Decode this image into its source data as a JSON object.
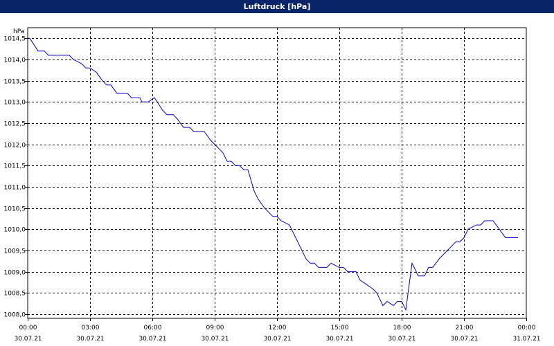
{
  "window": {
    "title": "Luftdruck [hPa]"
  },
  "chart_data": {
    "type": "line",
    "title": "Luftdruck [hPa]",
    "ylabel": "hPa",
    "xlabel": "",
    "grid": true,
    "ylim": [
      1007.9,
      1014.75
    ],
    "xlim": [
      0,
      24
    ],
    "y_ticks": [
      "1008,0",
      "1008,5",
      "1009,0",
      "1009,5",
      "1010,0",
      "1010,5",
      "1011,0",
      "1011,5",
      "1012,0",
      "1012,5",
      "1013,0",
      "1013,5",
      "1014,0",
      "1014,5"
    ],
    "y_tick_values": [
      1008.0,
      1008.5,
      1009.0,
      1009.5,
      1010.0,
      1010.5,
      1011.0,
      1011.5,
      1012.0,
      1012.5,
      1013.0,
      1013.5,
      1014.0,
      1014.5
    ],
    "x_ticks": [
      {
        "time": "00:00",
        "date": "30.07.21"
      },
      {
        "time": "03:00",
        "date": "30.07.21"
      },
      {
        "time": "06:00",
        "date": "30.07.21"
      },
      {
        "time": "09:00",
        "date": "30.07.21"
      },
      {
        "time": "12:00",
        "date": "30.07.21"
      },
      {
        "time": "15:00",
        "date": "30.07.21"
      },
      {
        "time": "18:00",
        "date": "30.07.21"
      },
      {
        "time": "21:00",
        "date": "30.07.21"
      },
      {
        "time": "00:00",
        "date": "31.07.21"
      }
    ],
    "x_tick_hours": [
      0,
      3,
      6,
      9,
      12,
      15,
      18,
      21,
      24
    ],
    "colors": {
      "line": "#0000cc",
      "grid": "#000000",
      "axis": "#000000"
    },
    "series": [
      {
        "x": [
          0,
          0.1,
          0.5,
          0.8,
          1.0,
          2.0,
          2.2,
          2.6,
          2.8,
          3.0,
          3.3,
          3.6,
          3.8,
          4.0,
          4.3,
          4.4,
          4.8,
          5.0,
          5.4,
          5.5,
          5.8,
          6.1,
          6.5,
          6.7,
          7.0,
          7.2,
          7.5,
          7.8,
          8.0,
          8.4,
          8.5,
          8.8,
          9.0,
          9.2,
          9.4,
          9.6,
          9.8,
          10.0,
          10.2,
          10.4,
          10.6,
          10.9,
          11.1,
          11.4,
          11.6,
          11.8,
          12.0,
          12.2,
          12.6,
          12.8,
          13.1,
          13.4,
          13.6,
          13.8,
          14.0,
          14.4,
          14.6,
          15.0,
          15.2,
          15.4,
          15.8,
          16.0,
          16.3,
          16.6,
          16.8,
          17.1,
          17.3,
          17.6,
          17.8,
          18.0,
          18.2,
          18.5,
          18.8,
          19.0,
          19.1,
          19.3,
          19.5,
          19.8,
          20.0,
          20.2,
          20.4,
          20.6,
          20.8,
          21.0,
          21.2,
          21.6,
          21.8,
          22.0,
          22.2,
          22.4,
          22.7,
          23.0,
          23.6
        ],
        "y": [
          1014.5,
          1014.5,
          1014.2,
          1014.2,
          1014.1,
          1014.1,
          1014.0,
          1013.9,
          1013.8,
          1013.8,
          1013.7,
          1013.5,
          1013.4,
          1013.4,
          1013.2,
          1013.2,
          1013.2,
          1013.1,
          1013.1,
          1013.0,
          1013.0,
          1013.1,
          1012.8,
          1012.7,
          1012.7,
          1012.6,
          1012.4,
          1012.4,
          1012.3,
          1012.3,
          1012.3,
          1012.1,
          1012.0,
          1011.9,
          1011.8,
          1011.6,
          1011.6,
          1011.5,
          1011.5,
          1011.4,
          1011.4,
          1010.9,
          1010.7,
          1010.5,
          1010.4,
          1010.3,
          1010.3,
          1010.2,
          1010.1,
          1009.9,
          1009.6,
          1009.3,
          1009.2,
          1009.2,
          1009.1,
          1009.1,
          1009.2,
          1009.1,
          1009.1,
          1009.0,
          1009.0,
          1008.8,
          1008.7,
          1008.6,
          1008.5,
          1008.2,
          1008.3,
          1008.2,
          1008.3,
          1008.3,
          1008.1,
          1009.2,
          1008.9,
          1008.9,
          1008.9,
          1009.1,
          1009.1,
          1009.3,
          1009.4,
          1009.5,
          1009.6,
          1009.7,
          1009.7,
          1009.8,
          1010.0,
          1010.1,
          1010.1,
          1010.2,
          1010.2,
          1010.2,
          1010.0,
          1009.8,
          1009.8
        ]
      }
    ]
  }
}
